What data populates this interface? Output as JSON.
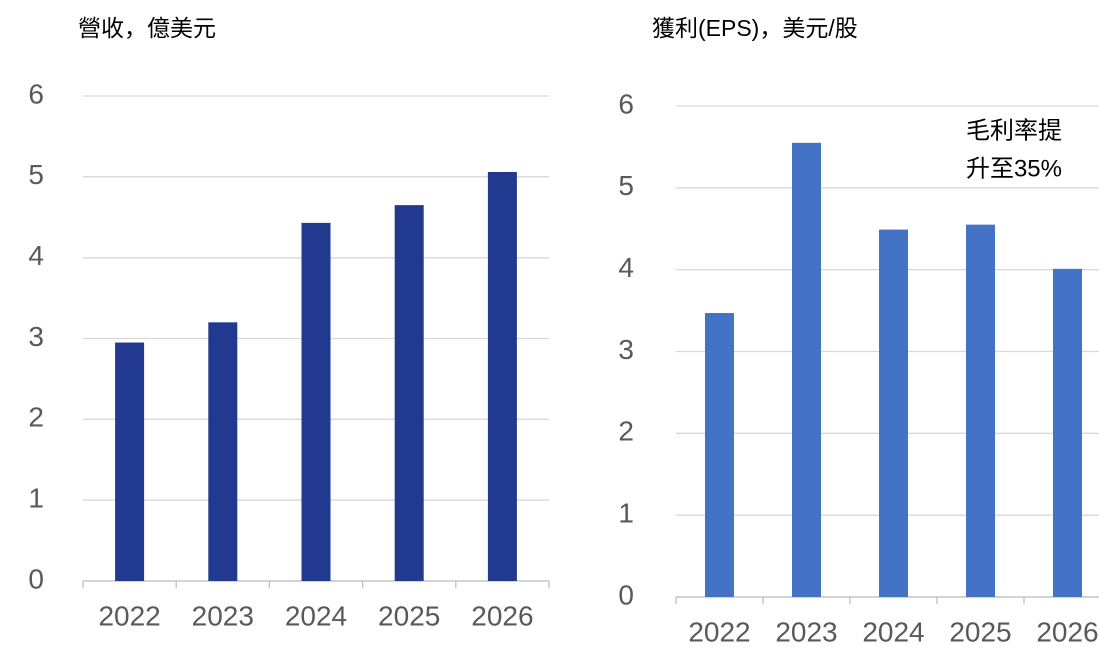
{
  "chart_data": [
    {
      "type": "bar",
      "title": "營收，億美元",
      "categories": [
        "2022",
        "2023",
        "2024",
        "2025",
        "2026"
      ],
      "values": [
        2.95,
        3.2,
        4.43,
        4.65,
        5.06
      ],
      "color": "#213a8f",
      "ylim": [
        0,
        6
      ],
      "yticks": [
        0,
        1,
        2,
        3,
        4,
        5,
        6
      ],
      "grid": true
    },
    {
      "type": "bar",
      "title": "獲利(EPS)，美元/股",
      "categories": [
        "2022",
        "2023",
        "2024",
        "2025",
        "2026"
      ],
      "values": [
        3.47,
        5.55,
        4.49,
        4.55,
        4.01
      ],
      "color": "#4472c4",
      "ylim": [
        0,
        6
      ],
      "yticks": [
        0,
        1,
        2,
        3,
        4,
        5,
        6
      ],
      "grid": true,
      "annotation": [
        "毛利率提",
        "升至35%"
      ]
    }
  ]
}
